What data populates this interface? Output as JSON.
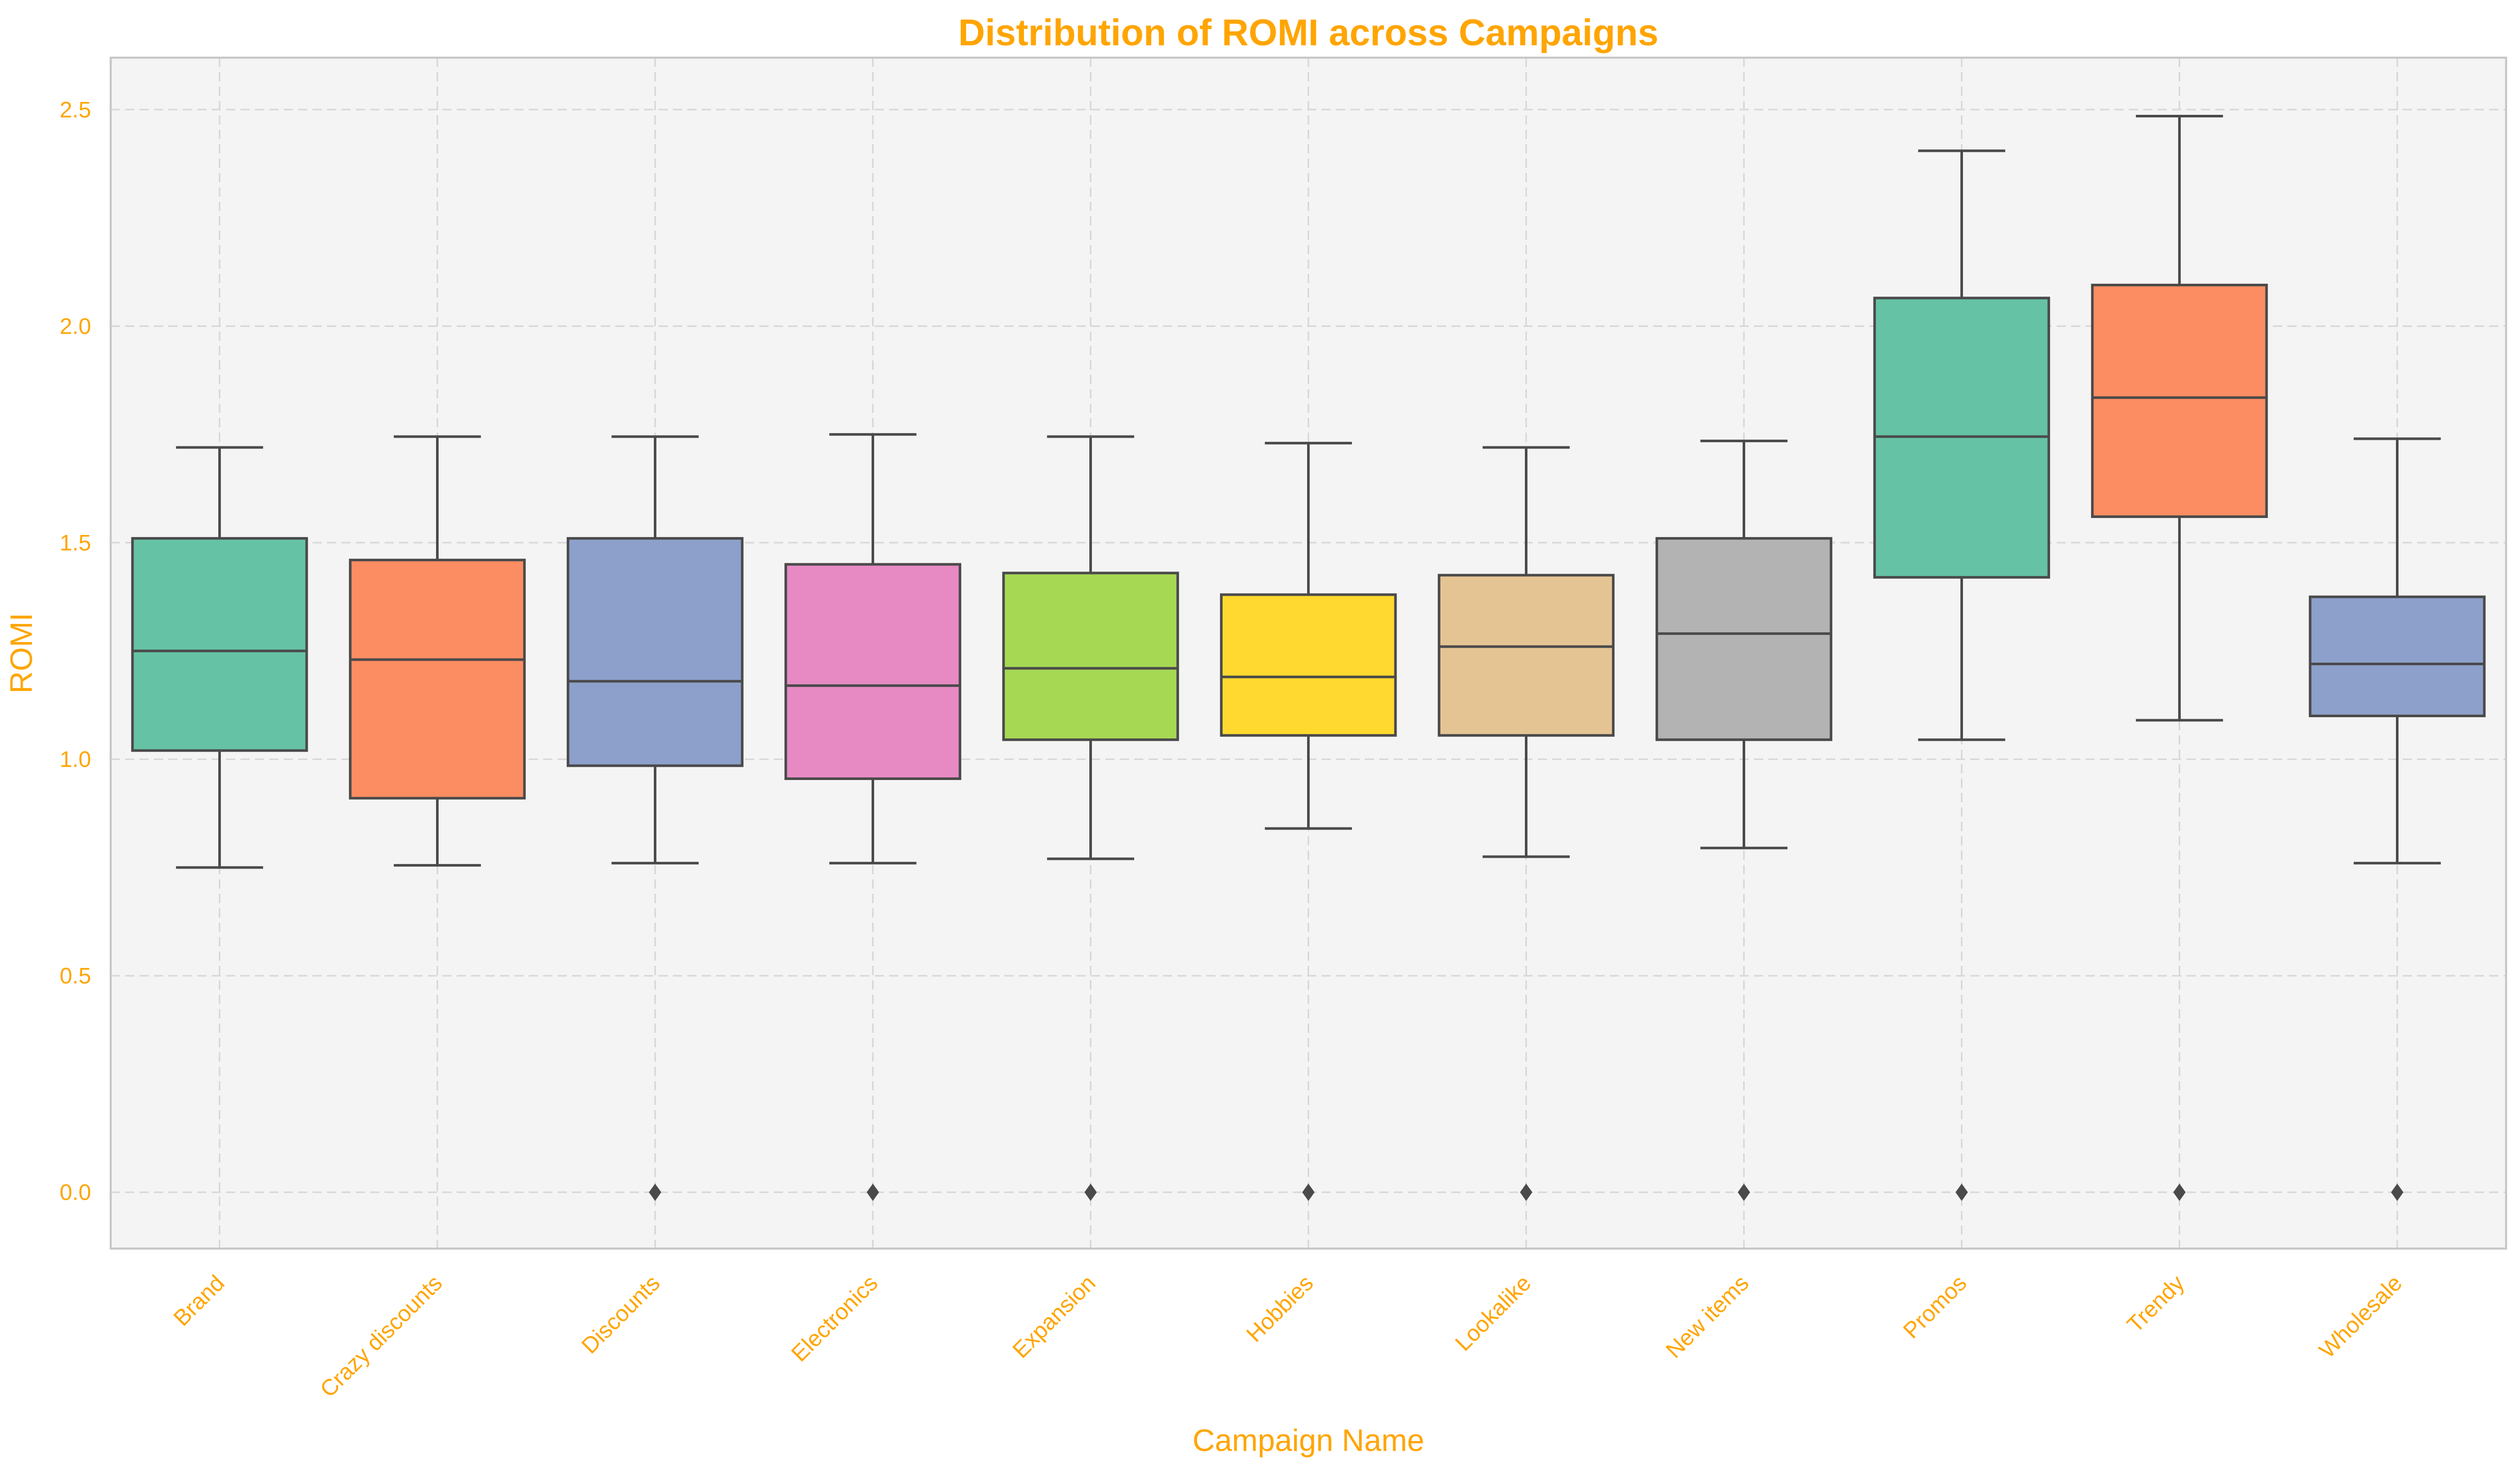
{
  "chart_data": {
    "type": "box",
    "title": "Distribution of ROMI across Campaigns",
    "xlabel": "Campaign Name",
    "ylabel": "ROMI",
    "ylim": [
      -0.13,
      2.62
    ],
    "yticks": [
      0.0,
      0.5,
      1.0,
      1.5,
      2.0,
      2.5
    ],
    "ytick_labels": [
      "0.0",
      "0.5",
      "1.0",
      "1.5",
      "2.0",
      "2.5"
    ],
    "grid": true,
    "text_color": "#FFA500",
    "plot_background": "#F4F4F4",
    "categories": [
      "Brand",
      "Crazy discounts",
      "Discounts",
      "Electronics",
      "Expansion",
      "Hobbies",
      "Lookalike",
      "New items",
      "Promos",
      "Trendy",
      "Wholesale"
    ],
    "boxes": [
      {
        "category": "Brand",
        "whisker_low": 0.75,
        "q1": 1.02,
        "median": 1.25,
        "q3": 1.51,
        "whisker_high": 1.72,
        "outliers": [],
        "color": "#66C2A5"
      },
      {
        "category": "Crazy discounts",
        "whisker_low": 0.755,
        "q1": 0.91,
        "median": 1.23,
        "q3": 1.46,
        "whisker_high": 1.745,
        "outliers": [],
        "color": "#FC8D62"
      },
      {
        "category": "Discounts",
        "whisker_low": 0.76,
        "q1": 0.985,
        "median": 1.18,
        "q3": 1.51,
        "whisker_high": 1.745,
        "outliers": [
          0.0
        ],
        "color": "#8DA0CB"
      },
      {
        "category": "Electronics",
        "whisker_low": 0.76,
        "q1": 0.955,
        "median": 1.17,
        "q3": 1.45,
        "whisker_high": 1.75,
        "outliers": [
          0.0
        ],
        "color": "#E78AC3"
      },
      {
        "category": "Expansion",
        "whisker_low": 0.77,
        "q1": 1.045,
        "median": 1.21,
        "q3": 1.43,
        "whisker_high": 1.745,
        "outliers": [
          0.0
        ],
        "color": "#A6D854"
      },
      {
        "category": "Hobbies",
        "whisker_low": 0.84,
        "q1": 1.055,
        "median": 1.19,
        "q3": 1.38,
        "whisker_high": 1.73,
        "outliers": [
          0.0
        ],
        "color": "#FFD92F"
      },
      {
        "category": "Lookalike",
        "whisker_low": 0.775,
        "q1": 1.055,
        "median": 1.26,
        "q3": 1.425,
        "whisker_high": 1.72,
        "outliers": [
          0.0
        ],
        "color": "#E5C494"
      },
      {
        "category": "New items",
        "whisker_low": 0.795,
        "q1": 1.045,
        "median": 1.29,
        "q3": 1.51,
        "whisker_high": 1.735,
        "outliers": [
          0.0
        ],
        "color": "#B3B3B3"
      },
      {
        "category": "Promos",
        "whisker_low": 1.045,
        "q1": 1.42,
        "median": 1.745,
        "q3": 2.065,
        "whisker_high": 2.405,
        "outliers": [
          0.0
        ],
        "color": "#66C2A5"
      },
      {
        "category": "Trendy",
        "whisker_low": 1.09,
        "q1": 1.56,
        "median": 1.835,
        "q3": 2.095,
        "whisker_high": 2.485,
        "outliers": [
          0.0
        ],
        "color": "#FC8D62"
      },
      {
        "category": "Wholesale",
        "whisker_low": 0.76,
        "q1": 1.1,
        "median": 1.22,
        "q3": 1.375,
        "whisker_high": 1.74,
        "outliers": [
          0.0
        ],
        "color": "#8DA0CB"
      }
    ]
  }
}
